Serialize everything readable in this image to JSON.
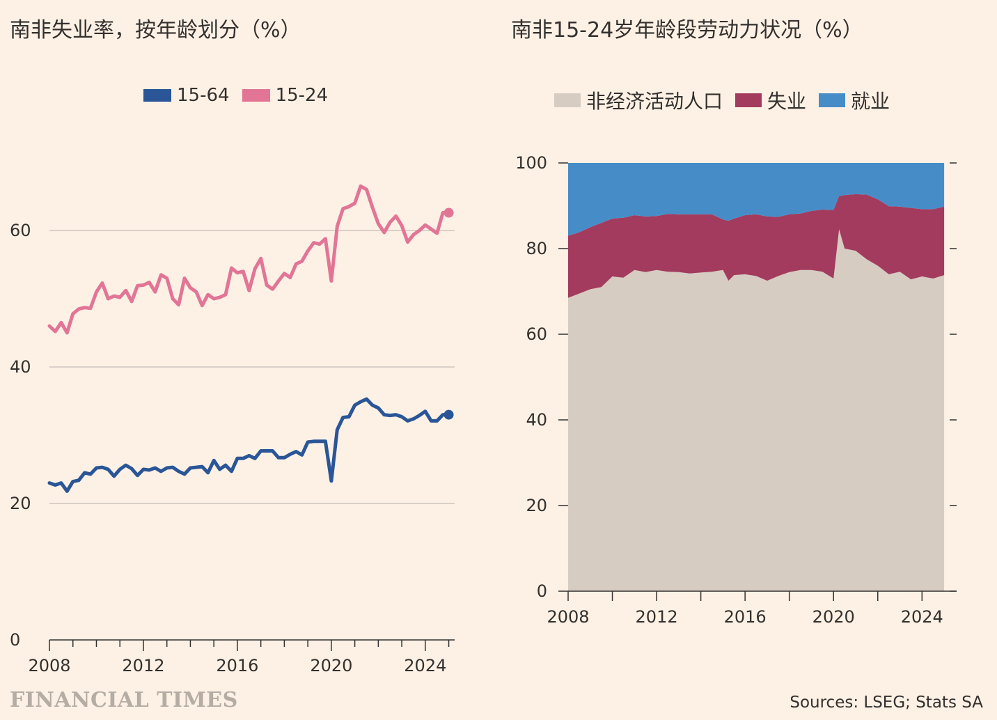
{
  "left": {
    "title": "南非失业率，按年龄划分（%）",
    "legend": [
      {
        "label": "15-64",
        "color": "#2a5597"
      },
      {
        "label": "15-24",
        "color": "#e27596"
      }
    ]
  },
  "right": {
    "title": "南非15-24岁年龄段劳动力状况（%）",
    "legend": [
      {
        "label": "非经济活动人口",
        "color": "#d6ccc2"
      },
      {
        "label": "失业",
        "color": "#a33b5e"
      },
      {
        "label": "就业",
        "color": "#468dc8"
      }
    ]
  },
  "footer": {
    "brand": "FINANCIAL TIMES",
    "source": "Sources: LSEG; Stats SA"
  },
  "chart_data": [
    {
      "type": "line",
      "title": "南非失业率，按年龄划分（%）",
      "ylim": [
        0,
        70
      ],
      "yticks": [
        0,
        20,
        40,
        60
      ],
      "xlim": [
        2008,
        2025.25
      ],
      "xticks": [
        2008,
        2012,
        2016,
        2020,
        2024
      ],
      "grid": true,
      "legend_position": "top",
      "series": [
        {
          "name": "15-24",
          "color": "#e27596",
          "x": [
            2008.0,
            2008.25,
            2008.5,
            2008.75,
            2009.0,
            2009.25,
            2009.5,
            2009.75,
            2010.0,
            2010.25,
            2010.5,
            2010.75,
            2011.0,
            2011.25,
            2011.5,
            2011.75,
            2012.0,
            2012.25,
            2012.5,
            2012.75,
            2013.0,
            2013.25,
            2013.5,
            2013.75,
            2014.0,
            2014.25,
            2014.5,
            2014.75,
            2015.0,
            2015.25,
            2015.5,
            2015.75,
            2016.0,
            2016.25,
            2016.5,
            2016.75,
            2017.0,
            2017.25,
            2017.5,
            2017.75,
            2018.0,
            2018.25,
            2018.5,
            2018.75,
            2019.0,
            2019.25,
            2019.5,
            2019.75,
            2020.0,
            2020.25,
            2020.5,
            2020.75,
            2021.0,
            2021.25,
            2021.5,
            2021.75,
            2022.0,
            2022.25,
            2022.5,
            2022.75,
            2023.0,
            2023.25,
            2023.5,
            2023.75,
            2024.0,
            2024.25,
            2024.5,
            2024.75,
            2025.0
          ],
          "values": [
            46.0,
            45.2,
            46.5,
            45.0,
            47.8,
            48.5,
            48.7,
            48.6,
            51.0,
            52.3,
            50.0,
            50.4,
            50.2,
            51.2,
            49.6,
            51.9,
            52.0,
            52.4,
            51.0,
            53.5,
            53.0,
            50.0,
            49.1,
            53.0,
            51.6,
            51.0,
            49.0,
            50.6,
            50.0,
            50.2,
            50.6,
            54.5,
            53.8,
            54.0,
            51.2,
            54.4,
            55.9,
            52.0,
            51.4,
            52.6,
            53.7,
            53.1,
            55.1,
            55.5,
            57.0,
            58.2,
            58.0,
            58.8,
            52.6,
            60.6,
            63.2,
            63.5,
            64.0,
            66.5,
            66.0,
            63.4,
            61.0,
            59.7,
            61.2,
            62.1,
            60.7,
            58.3,
            59.4,
            60.0,
            60.8,
            60.2,
            59.6,
            62.6,
            62.6
          ]
        },
        {
          "name": "15-64",
          "color": "#2a5597",
          "x": [
            2008.0,
            2008.25,
            2008.5,
            2008.75,
            2009.0,
            2009.25,
            2009.5,
            2009.75,
            2010.0,
            2010.25,
            2010.5,
            2010.75,
            2011.0,
            2011.25,
            2011.5,
            2011.75,
            2012.0,
            2012.25,
            2012.5,
            2012.75,
            2013.0,
            2013.25,
            2013.5,
            2013.75,
            2014.0,
            2014.25,
            2014.5,
            2014.75,
            2015.0,
            2015.25,
            2015.5,
            2015.75,
            2016.0,
            2016.25,
            2016.5,
            2016.75,
            2017.0,
            2017.25,
            2017.5,
            2017.75,
            2018.0,
            2018.25,
            2018.5,
            2018.75,
            2019.0,
            2019.25,
            2019.5,
            2019.75,
            2020.0,
            2020.25,
            2020.5,
            2020.75,
            2021.0,
            2021.25,
            2021.5,
            2021.75,
            2022.0,
            2022.25,
            2022.5,
            2022.75,
            2023.0,
            2023.25,
            2023.5,
            2023.75,
            2024.0,
            2024.25,
            2024.5,
            2024.75,
            2025.0
          ],
          "values": [
            23.0,
            22.7,
            23.0,
            21.8,
            23.2,
            23.4,
            24.5,
            24.3,
            25.2,
            25.3,
            25.0,
            24.0,
            25.0,
            25.6,
            25.1,
            24.1,
            25.0,
            24.9,
            25.2,
            24.7,
            25.2,
            25.3,
            24.7,
            24.3,
            25.2,
            25.3,
            25.4,
            24.5,
            26.3,
            25.0,
            25.6,
            24.7,
            26.6,
            26.6,
            27.0,
            26.6,
            27.7,
            27.7,
            27.7,
            26.7,
            26.7,
            27.2,
            27.6,
            27.1,
            29.0,
            29.1,
            29.1,
            29.1,
            23.3,
            30.8,
            32.6,
            32.7,
            34.4,
            34.9,
            35.3,
            34.4,
            34.0,
            33.0,
            32.9,
            33.0,
            32.7,
            32.1,
            32.4,
            32.9,
            33.5,
            32.1,
            32.1,
            33.0,
            33.0
          ]
        }
      ]
    },
    {
      "type": "area",
      "title": "南非15-24岁年龄段劳动力状况（%）",
      "stacked": true,
      "ylim": [
        0,
        100
      ],
      "yticks": [
        0,
        20,
        40,
        60,
        80,
        100
      ],
      "xlim": [
        2008,
        2025.25
      ],
      "xticks": [
        2008,
        2012,
        2016,
        2020,
        2024
      ],
      "legend_position": "top",
      "x": [
        2008.0,
        2008.5,
        2009.0,
        2009.5,
        2010.0,
        2010.5,
        2011.0,
        2011.5,
        2012.0,
        2012.5,
        2013.0,
        2013.5,
        2014.0,
        2014.5,
        2015.0,
        2015.25,
        2015.5,
        2016.0,
        2016.5,
        2017.0,
        2017.5,
        2018.0,
        2018.5,
        2019.0,
        2019.5,
        2020.0,
        2020.25,
        2020.5,
        2021.0,
        2021.5,
        2022.0,
        2022.5,
        2023.0,
        2023.5,
        2024.0,
        2024.5,
        2025.0
      ],
      "series": [
        {
          "name": "非经济活动人口",
          "color": "#d6ccc2",
          "values": [
            68.5,
            69.5,
            70.5,
            71.0,
            73.5,
            73.2,
            75.0,
            74.5,
            75.0,
            74.6,
            74.5,
            74.2,
            74.4,
            74.6,
            75.0,
            72.5,
            73.8,
            74.0,
            73.6,
            72.5,
            73.6,
            74.5,
            75.0,
            75.0,
            74.6,
            73.0,
            84.5,
            80.0,
            79.5,
            77.5,
            76.0,
            74.0,
            74.6,
            72.8,
            73.5,
            73.0,
            73.8
          ]
        },
        {
          "name": "失业",
          "color": "#a33b5e",
          "values": [
            14.5,
            14.3,
            14.5,
            15.0,
            13.5,
            14.0,
            12.8,
            13.0,
            12.6,
            13.5,
            13.5,
            13.8,
            13.6,
            13.4,
            11.8,
            14.0,
            13.2,
            13.8,
            14.4,
            15.0,
            13.8,
            13.5,
            13.2,
            13.8,
            14.5,
            16.0,
            7.8,
            12.5,
            13.2,
            15.1,
            15.5,
            15.9,
            15.2,
            16.7,
            15.7,
            16.2,
            16.0
          ]
        },
        {
          "name": "就业",
          "color": "#468dc8",
          "values": [
            17.0,
            16.2,
            15.0,
            14.0,
            13.0,
            12.8,
            12.2,
            12.5,
            12.4,
            11.9,
            12.0,
            12.0,
            12.0,
            12.0,
            13.2,
            13.5,
            13.0,
            12.2,
            12.0,
            12.5,
            12.6,
            12.0,
            11.8,
            11.2,
            10.9,
            11.0,
            7.7,
            7.5,
            7.3,
            7.4,
            8.5,
            10.1,
            10.2,
            10.5,
            10.8,
            10.8,
            10.2
          ]
        }
      ]
    }
  ]
}
